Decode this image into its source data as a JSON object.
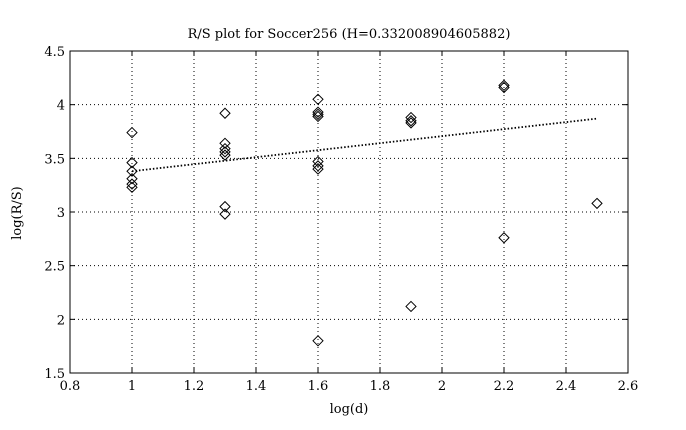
{
  "chart_data": {
    "type": "scatter",
    "title": "R/S plot for Soccer256 (H=0.332008904605882)",
    "xlabel": "log(d)",
    "ylabel": "log(R/S)",
    "xlim": [
      0.8,
      2.6
    ],
    "ylim": [
      1.5,
      4.5
    ],
    "x_ticks": [
      "0.8",
      "1",
      "1.2",
      "1.4",
      "1.6",
      "1.8",
      "2",
      "2.2",
      "2.4",
      "2.6"
    ],
    "y_ticks": [
      "1.5",
      "2",
      "2.5",
      "3",
      "3.5",
      "4",
      "4.5"
    ],
    "x_tick_values": [
      0.8,
      1.0,
      1.2,
      1.4,
      1.6,
      1.8,
      2.0,
      2.2,
      2.4,
      2.6
    ],
    "y_tick_values": [
      1.5,
      2.0,
      2.5,
      3.0,
      3.5,
      4.0,
      4.5
    ],
    "grid": true,
    "marker": "diamond",
    "points": [
      {
        "x": 1.0,
        "y": 3.74
      },
      {
        "x": 1.0,
        "y": 3.46
      },
      {
        "x": 1.0,
        "y": 3.38
      },
      {
        "x": 1.0,
        "y": 3.31
      },
      {
        "x": 1.0,
        "y": 3.26
      },
      {
        "x": 1.0,
        "y": 3.23
      },
      {
        "x": 1.3,
        "y": 3.92
      },
      {
        "x": 1.3,
        "y": 3.64
      },
      {
        "x": 1.3,
        "y": 3.59
      },
      {
        "x": 1.3,
        "y": 3.56
      },
      {
        "x": 1.3,
        "y": 3.53
      },
      {
        "x": 1.3,
        "y": 3.05
      },
      {
        "x": 1.3,
        "y": 2.98
      },
      {
        "x": 1.6,
        "y": 4.05
      },
      {
        "x": 1.6,
        "y": 3.93
      },
      {
        "x": 1.6,
        "y": 3.91
      },
      {
        "x": 1.6,
        "y": 3.89
      },
      {
        "x": 1.6,
        "y": 3.47
      },
      {
        "x": 1.6,
        "y": 3.43
      },
      {
        "x": 1.6,
        "y": 3.4
      },
      {
        "x": 1.6,
        "y": 1.8
      },
      {
        "x": 1.9,
        "y": 3.88
      },
      {
        "x": 1.9,
        "y": 3.85
      },
      {
        "x": 1.9,
        "y": 3.83
      },
      {
        "x": 1.9,
        "y": 2.12
      },
      {
        "x": 2.2,
        "y": 4.18
      },
      {
        "x": 2.2,
        "y": 4.16
      },
      {
        "x": 2.2,
        "y": 2.76
      },
      {
        "x": 2.5,
        "y": 3.08
      }
    ],
    "fit_line": {
      "style": "dotted",
      "x": [
        1.0,
        2.5
      ],
      "y": [
        3.38,
        3.87
      ]
    }
  }
}
